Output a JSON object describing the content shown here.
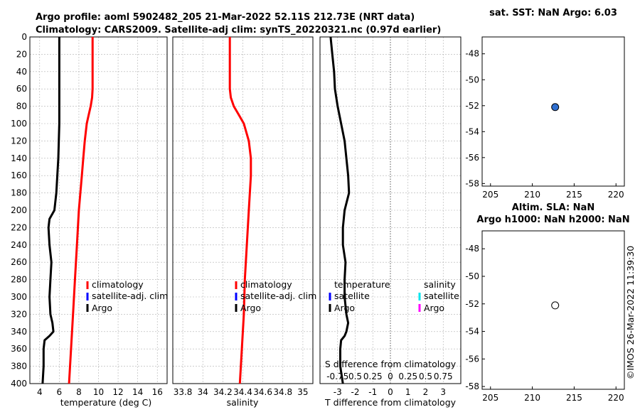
{
  "titles": {
    "line1": "Argo profile: aoml 5902482_205 21-Mar-2022 52.11S 212.73E (NRT data)",
    "line2": "Climatology: CARS2009. Satellite-adj clim: synTS_20220321.nc (0.97d earlier)"
  },
  "colors": {
    "climatology": "#ff0000",
    "satellite_adj": "#0000ff",
    "argo": "#000000",
    "satellite_s": "#00e5ee",
    "argo_s": "#ff00ff",
    "map_dot": "#2f6fd0"
  },
  "chart_data": [
    {
      "type": "line",
      "name": "temperature-panel",
      "xlabel": "temperature (deg C)",
      "ylabel": "",
      "xlim": [
        3,
        17
      ],
      "ylim": [
        400,
        0
      ],
      "x_ticks": [
        "4",
        "6",
        "8",
        "10",
        "12",
        "14",
        "16"
      ],
      "y_ticks": [
        "0",
        "20",
        "40",
        "60",
        "80",
        "100",
        "120",
        "140",
        "160",
        "180",
        "200",
        "220",
        "240",
        "260",
        "280",
        "300",
        "320",
        "340",
        "360",
        "380",
        "400"
      ],
      "series": [
        {
          "name": "climatology",
          "color": "#ff0000",
          "depth": [
            0,
            20,
            40,
            60,
            70,
            80,
            90,
            100,
            120,
            140,
            160,
            180,
            200,
            240,
            280,
            320,
            360,
            400
          ],
          "values": [
            9.4,
            9.4,
            9.4,
            9.4,
            9.35,
            9.2,
            9.0,
            8.8,
            8.6,
            8.45,
            8.3,
            8.15,
            8.0,
            7.8,
            7.6,
            7.4,
            7.2,
            7.0
          ]
        },
        {
          "name": "Argo",
          "color": "#000000",
          "depth": [
            0,
            20,
            40,
            60,
            80,
            100,
            120,
            140,
            160,
            180,
            200,
            210,
            220,
            240,
            260,
            280,
            300,
            320,
            330,
            340,
            345,
            350,
            360,
            380,
            400
          ],
          "values": [
            6.0,
            6.0,
            6.0,
            6.0,
            6.0,
            6.0,
            5.95,
            5.9,
            5.8,
            5.7,
            5.5,
            5.0,
            4.9,
            5.0,
            5.2,
            5.1,
            5.0,
            5.1,
            5.3,
            5.4,
            5.0,
            4.5,
            4.4,
            4.4,
            4.3
          ]
        }
      ],
      "legend": [
        "climatology",
        "satellite-adj. clim",
        "Argo"
      ]
    },
    {
      "type": "line",
      "name": "salinity-panel",
      "xlabel": "salinity",
      "ylabel": "",
      "xlim": [
        33.7,
        35.1
      ],
      "ylim": [
        400,
        0
      ],
      "x_ticks": [
        "33.8",
        "34",
        "34.2",
        "34.4",
        "34.6",
        "34.8",
        "35"
      ],
      "series": [
        {
          "name": "climatology",
          "color": "#ff0000",
          "depth": [
            0,
            20,
            40,
            60,
            70,
            80,
            90,
            100,
            120,
            140,
            160,
            200,
            240,
            280,
            320,
            360,
            400
          ],
          "values": [
            34.27,
            34.27,
            34.27,
            34.27,
            34.28,
            34.31,
            34.36,
            34.41,
            34.46,
            34.48,
            34.48,
            34.46,
            34.44,
            34.42,
            34.41,
            34.39,
            34.37
          ]
        }
      ],
      "legend": [
        "climatology",
        "satellite-adj. clim",
        "Argo"
      ]
    },
    {
      "type": "line",
      "name": "difference-panel",
      "xlabel": "T difference from climatology",
      "x2label": "S difference from climatology",
      "xlim": [
        -4,
        4
      ],
      "ylim": [
        400,
        0
      ],
      "x_ticks": [
        "-3",
        "-2",
        "-1",
        "0",
        "1",
        "2",
        "3"
      ],
      "x2_ticks": [
        "-0.75",
        "0.5",
        "0.25",
        "0",
        "0.25",
        "0.5",
        "0.75"
      ],
      "series": [
        {
          "name": "Argo T diff",
          "color": "#000000",
          "depth": [
            0,
            20,
            40,
            60,
            80,
            100,
            120,
            140,
            160,
            180,
            200,
            220,
            240,
            260,
            280,
            300,
            320,
            330,
            340,
            345,
            350,
            360,
            380,
            400
          ],
          "values": [
            -3.4,
            -3.3,
            -3.2,
            -3.15,
            -3.0,
            -2.8,
            -2.6,
            -2.5,
            -2.4,
            -2.35,
            -2.6,
            -2.7,
            -2.7,
            -2.55,
            -2.6,
            -2.6,
            -2.5,
            -2.4,
            -2.5,
            -2.6,
            -2.8,
            -2.85,
            -2.85,
            -2.7
          ]
        }
      ],
      "legend_left_title": "temperature",
      "legend_right_title": "salinity",
      "legend_left": [
        "satellite",
        "Argo"
      ],
      "legend_right": [
        "satellite",
        "Argo"
      ]
    },
    {
      "type": "scatter",
      "name": "sst-map",
      "title": "sat. SST: NaN Argo: 6.03",
      "xlim": [
        204,
        221
      ],
      "ylim": [
        -58.2,
        -46.7
      ],
      "x_ticks": [
        "205",
        "210",
        "215",
        "220"
      ],
      "y_ticks": [
        "-48",
        "-50",
        "-52",
        "-54",
        "-56",
        "-58"
      ],
      "points": [
        {
          "lon": 212.73,
          "lat": -52.11,
          "filled": true
        }
      ]
    },
    {
      "type": "scatter",
      "name": "sla-map",
      "title_line1": "Altim. SLA: NaN",
      "title_line2": "Argo h1000: NaN h2000: NaN",
      "xlim": [
        204,
        221
      ],
      "ylim": [
        -58.2,
        -46.7
      ],
      "x_ticks": [
        "205",
        "210",
        "215",
        "220"
      ],
      "y_ticks": [
        "-48",
        "-50",
        "-52",
        "-54",
        "-56",
        "-58"
      ],
      "points": [
        {
          "lon": 212.73,
          "lat": -52.11,
          "filled": false
        }
      ]
    }
  ],
  "stamp": "©IMOS 26-Mar-2022 11:39:30"
}
